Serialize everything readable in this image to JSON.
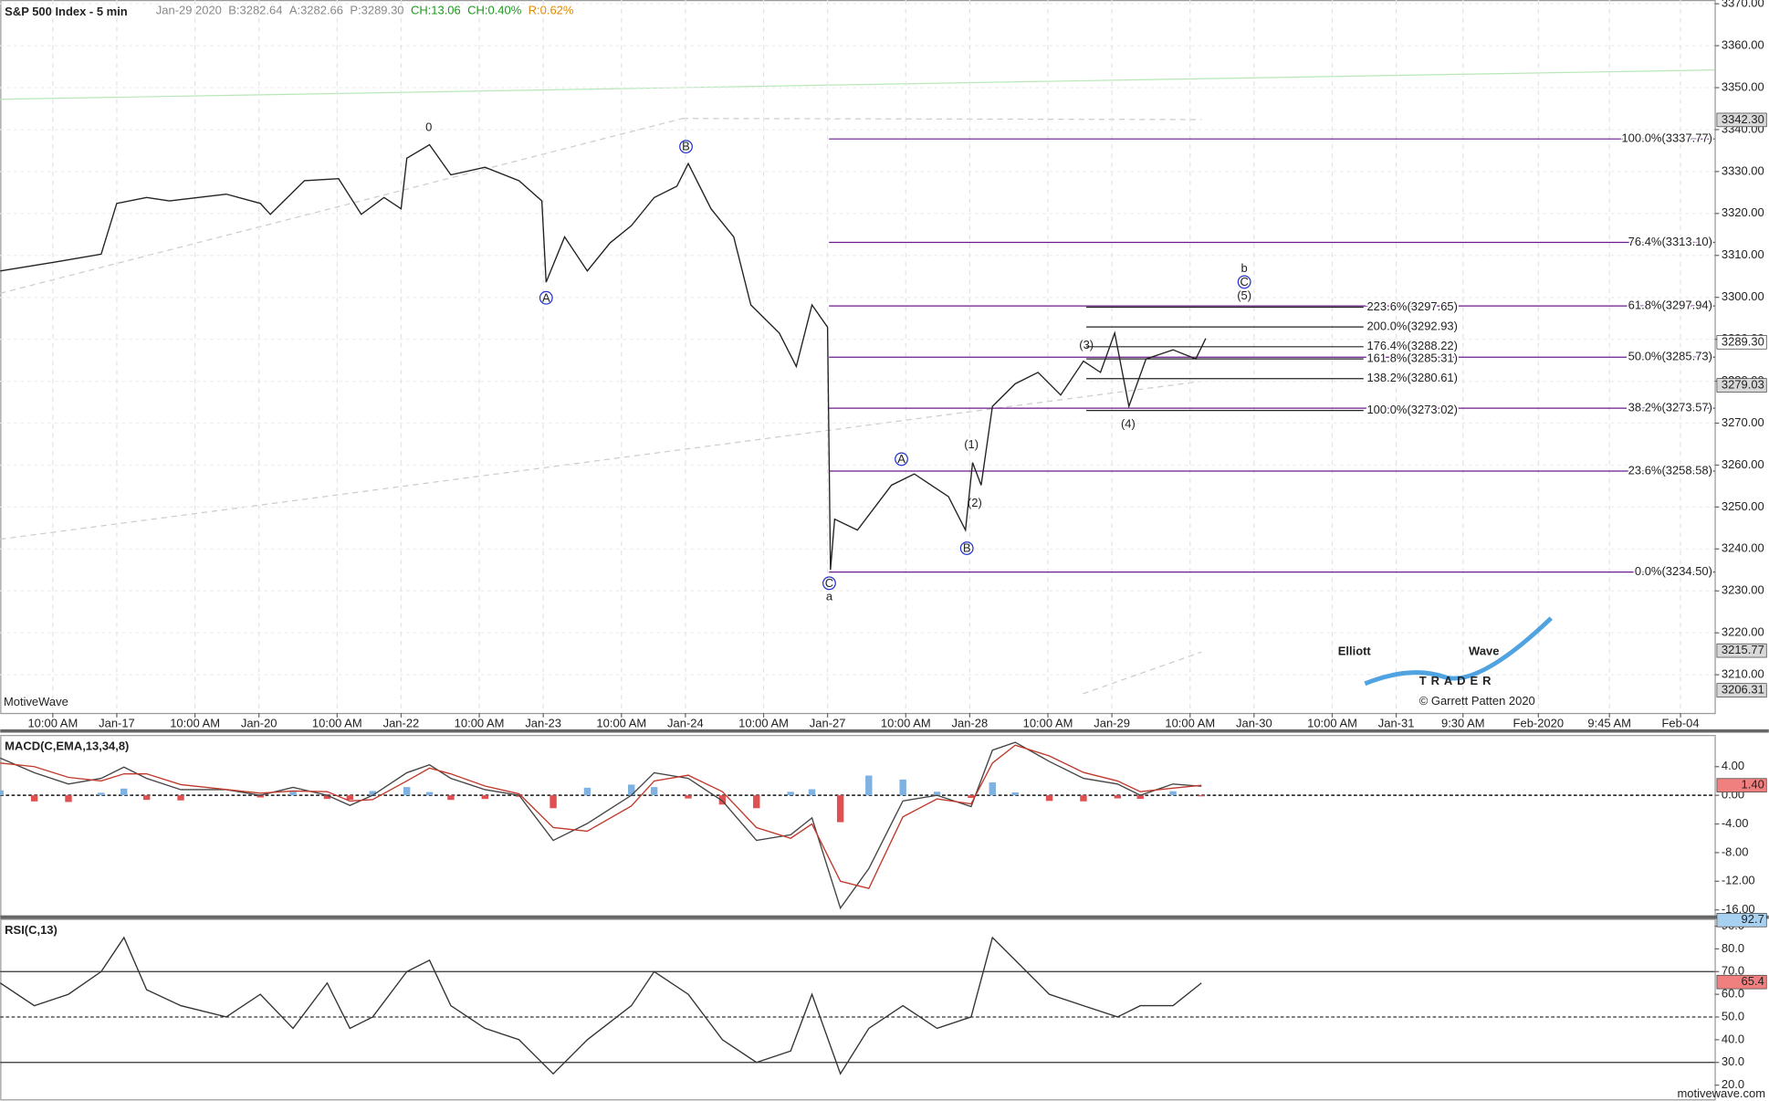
{
  "chart_data": [
    {
      "type": "line",
      "title": "S&P 500 Index - 5 min",
      "header": [
        {
          "text": "Jan-29 2020",
          "color": "#888888"
        },
        {
          "text": "B:3282.64",
          "color": "#888888"
        },
        {
          "text": "A:3282.66",
          "color": "#888888"
        },
        {
          "text": "P:3289.30",
          "color": "#888888"
        },
        {
          "text": "CH:13.06",
          "color": "#1a9a1a"
        },
        {
          "text": "CH:0.40%",
          "color": "#1a9a1a"
        },
        {
          "text": "R:0.62%",
          "color": "#e08a00"
        }
      ],
      "x": [
        0.18,
        0.58,
        0.89,
        1.0,
        1.21,
        1.37,
        1.77,
        2.01,
        2.08,
        2.32,
        2.56,
        2.72,
        2.88,
        3.0,
        3.04,
        3.2,
        3.35,
        3.59,
        3.83,
        3.99,
        4.02,
        4.15,
        4.31,
        4.47,
        4.62,
        4.78,
        4.94,
        5.02,
        5.18,
        5.34,
        5.46,
        5.66,
        5.78,
        5.89,
        6.0,
        6.02,
        6.05,
        6.21,
        6.45,
        6.61,
        6.85,
        6.97,
        7.02,
        7.08,
        7.16,
        7.32,
        7.48,
        7.64,
        7.8,
        7.92,
        8.02,
        8.12,
        8.24,
        8.43,
        8.59,
        8.66
      ],
      "values": [
        3306.3,
        3308.5,
        3310.3,
        3322.4,
        3323.8,
        3323.0,
        3324.6,
        3322.4,
        3319.8,
        3327.8,
        3328.3,
        3319.8,
        3323.8,
        3321.1,
        3333.2,
        3336.4,
        3329.2,
        3331.0,
        3327.8,
        3323.0,
        3303.6,
        3314.4,
        3306.3,
        3313.0,
        3317.1,
        3323.8,
        3326.5,
        3331.9,
        3321.1,
        3314.4,
        3298.2,
        3291.5,
        3283.5,
        3298.2,
        3292.9,
        3235.0,
        3247.1,
        3244.5,
        3255.2,
        3257.9,
        3252.5,
        3244.5,
        3260.6,
        3255.2,
        3274.0,
        3279.4,
        3282.1,
        3276.7,
        3284.8,
        3282.1,
        3291.5,
        3274.0,
        3285.3,
        3287.5,
        3285.3,
        3290.2
      ],
      "color": "#222222",
      "xlim": [
        0.18,
        12.24
      ],
      "xticks": [
        {
          "value": 0.55,
          "label": "10:00 AM"
        },
        {
          "value": 1,
          "label": "Jan-17"
        },
        {
          "value": 1.55,
          "label": "10:00 AM"
        },
        {
          "value": 2,
          "label": "Jan-20"
        },
        {
          "value": 2.55,
          "label": "10:00 AM"
        },
        {
          "value": 3,
          "label": "Jan-22"
        },
        {
          "value": 3.55,
          "label": "10:00 AM"
        },
        {
          "value": 4,
          "label": "Jan-23"
        },
        {
          "value": 4.55,
          "label": "10:00 AM"
        },
        {
          "value": 5,
          "label": "Jan-24"
        },
        {
          "value": 5.55,
          "label": "10:00 AM"
        },
        {
          "value": 6,
          "label": "Jan-27"
        },
        {
          "value": 6.55,
          "label": "10:00 AM"
        },
        {
          "value": 7,
          "label": "Jan-28"
        },
        {
          "value": 7.55,
          "label": "10:00 AM"
        },
        {
          "value": 8,
          "label": "Jan-29"
        },
        {
          "value": 8.55,
          "label": "10:00 AM"
        },
        {
          "value": 9,
          "label": "Jan-30"
        },
        {
          "value": 9.55,
          "label": "10:00 AM"
        },
        {
          "value": 10,
          "label": "Jan-31"
        },
        {
          "value": 10.47,
          "label": "9:30 AM"
        },
        {
          "value": 11,
          "label": "Feb-2020"
        },
        {
          "value": 11.5,
          "label": "9:45 AM"
        },
        {
          "value": 12,
          "label": "Feb-04"
        }
      ],
      "ylim": [
        3200.9,
        3370.9
      ],
      "yticks": [
        {
          "value": 3210,
          "label": "3210.00"
        },
        {
          "value": 3220,
          "label": "3220.00"
        },
        {
          "value": 3230,
          "label": "3230.00"
        },
        {
          "value": 3240,
          "label": "3240.00"
        },
        {
          "value": 3250,
          "label": "3250.00"
        },
        {
          "value": 3260,
          "label": "3260.00"
        },
        {
          "value": 3270,
          "label": "3270.00"
        },
        {
          "value": 3280,
          "label": "3280.00"
        },
        {
          "value": 3290,
          "label": "3290.00"
        },
        {
          "value": 3300,
          "label": "3300.00"
        },
        {
          "value": 3310,
          "label": "3310.00"
        },
        {
          "value": 3320,
          "label": "3320.00"
        },
        {
          "value": 3330,
          "label": "3330.00"
        },
        {
          "value": 3340,
          "label": "3340.00"
        },
        {
          "value": 3350,
          "label": "3350.00"
        },
        {
          "value": 3360,
          "label": "3360.00"
        },
        {
          "value": 3370,
          "label": "3370.00"
        }
      ],
      "grid": true,
      "price_tags": [
        {
          "value": 3342.3,
          "label": "3342.30",
          "color": "#d8d8d8"
        },
        {
          "value": 3289.3,
          "label": "3289.30",
          "color": "#ffffff"
        },
        {
          "value": 3279.03,
          "label": "3279.03",
          "color": "#d8d8d8"
        },
        {
          "value": 3215.77,
          "label": "3215.77",
          "color": "#d8d8d8"
        },
        {
          "value": 3206.31,
          "label": "3206.31",
          "color": "#d8d8d8"
        }
      ],
      "fib_color": "#6a1b8a",
      "fib_start": 6.01,
      "fib_levels": [
        {
          "value": 3337.77,
          "label": "100.0%(3337.77)"
        },
        {
          "value": 3313.1,
          "label": "76.4%(3313.10)"
        },
        {
          "value": 3297.94,
          "label": "61.8%(3297.94)"
        },
        {
          "value": 3285.73,
          "label": "50.0%(3285.73)"
        },
        {
          "value": 3273.57,
          "label": "38.2%(3273.57)"
        },
        {
          "value": 3258.58,
          "label": "23.6%(3258.58)"
        },
        {
          "value": 3234.5,
          "label": "0.0%(3234.50)"
        }
      ],
      "ext_color": "#222222",
      "ext_xrange": [
        7.82,
        9.77
      ],
      "ext_levels": [
        {
          "value": 3297.65,
          "label": "223.6%(3297.65)"
        },
        {
          "value": 3292.93,
          "label": "200.0%(3292.93)"
        },
        {
          "value": 3288.22,
          "label": "176.4%(3288.22)"
        },
        {
          "value": 3285.31,
          "label": "161.8%(3285.31)"
        },
        {
          "value": 3280.61,
          "label": "138.2%(3280.61)"
        },
        {
          "value": 3273.02,
          "label": "100.0%(3273.02)"
        }
      ],
      "annotations": [
        {
          "text": "0"
        },
        {
          "text": "A",
          "circled": true
        },
        {
          "text": "B",
          "circled": true
        },
        {
          "text": "C",
          "circled": true
        },
        {
          "text": "a"
        },
        {
          "text": "A",
          "circled": true
        },
        {
          "text": "B",
          "circled": true
        },
        {
          "text": "(1)"
        },
        {
          "text": "(2)"
        },
        {
          "text": "(3)"
        },
        {
          "text": "(4)"
        },
        {
          "text": "b"
        },
        {
          "text": "C",
          "circled": true
        },
        {
          "text": "(5)"
        }
      ],
      "watermark": "MotiveWave",
      "logo": {
        "line1": "Elliott",
        "line2": "Wave",
        "line3": "TRADER",
        "credit": "© Garrett Patten 2020"
      }
    },
    {
      "type": "macd",
      "title": "MACD(C,EMA,13,34,8)",
      "x": [
        0.18,
        0.42,
        0.66,
        0.89,
        1.05,
        1.21,
        1.45,
        1.77,
        2.01,
        2.24,
        2.48,
        2.64,
        2.8,
        3.04,
        3.2,
        3.35,
        3.59,
        3.83,
        4.07,
        4.31,
        4.62,
        4.78,
        5.02,
        5.26,
        5.5,
        5.74,
        5.89,
        6.09,
        6.29,
        6.53,
        6.77,
        7.01,
        7.16,
        7.32,
        7.56,
        7.8,
        8.04,
        8.2,
        8.43,
        8.63
      ],
      "series": [
        {
          "color": "#444444",
          "values": [
            5.2,
            3.15,
            1.57,
            2.36,
            3.94,
            2.36,
            0.79,
            0.79,
            0,
            1.1,
            0,
            -1.42,
            0,
            3.15,
            4.25,
            2.36,
            0.79,
            0,
            -6.3,
            -3.94,
            0,
            3.15,
            2.36,
            -0.79,
            -6.3,
            -5.51,
            -3.15,
            -15.75,
            -10.24,
            -0.79,
            0,
            -1.57,
            6.3,
            7.4,
            4.72,
            2.36,
            1.57,
            0,
            1.57,
            1.26
          ]
        },
        {
          "color": "#c0392b",
          "values": [
            4.5,
            4.0,
            2.5,
            2.0,
            3.0,
            3.0,
            1.5,
            0.8,
            0.3,
            0.6,
            0.5,
            -0.8,
            -0.6,
            2.0,
            3.8,
            3.0,
            1.3,
            0.2,
            -4.5,
            -5.0,
            -1.5,
            2.0,
            2.8,
            0.5,
            -4.5,
            -6.0,
            -4.0,
            -12.0,
            -13.0,
            -3.0,
            -0.5,
            -1.2,
            4.5,
            7.0,
            5.5,
            3.2,
            2.0,
            0.5,
            1.0,
            1.4
          ]
        }
      ],
      "histogram": [
        0.7,
        -0.85,
        -0.93,
        0.36,
        0.94,
        -0.64,
        -0.71,
        -0.01,
        -0.3,
        0.5,
        -0.5,
        -0.62,
        0.6,
        1.15,
        0.45,
        -0.64,
        -0.51,
        -0.2,
        -1.8,
        1.06,
        1.5,
        1.15,
        -0.44,
        -1.29,
        -1.8,
        0.49,
        0.85,
        -3.75,
        2.76,
        2.21,
        0.5,
        -0.37,
        1.8,
        0.4,
        -0.78,
        -0.84,
        -0.43,
        -0.5,
        0.57,
        -0.14
      ],
      "pos_color": "#7fb2e0",
      "neg_color": "#e05050",
      "xlim": [
        0.18,
        12.24
      ],
      "ylim": [
        -16.85,
        8.35
      ],
      "yticks": [
        {
          "value": 4,
          "label": "4.00"
        },
        {
          "value": 0,
          "label": "0.00"
        },
        {
          "value": -4,
          "label": "-4.00"
        },
        {
          "value": -8,
          "label": "-8.00"
        },
        {
          "value": -12,
          "label": "-12.00"
        },
        {
          "value": -16,
          "label": "-16.00"
        }
      ],
      "price_tags": [
        {
          "value": 1.4,
          "label": "1.40",
          "color": "#f08080"
        }
      ],
      "zero_line": 0
    },
    {
      "type": "rsi",
      "title": "RSI(C,13)",
      "x": [
        0.18,
        0.42,
        0.66,
        0.89,
        1.05,
        1.21,
        1.45,
        1.77,
        2.01,
        2.24,
        2.48,
        2.64,
        2.8,
        3.04,
        3.2,
        3.35,
        3.59,
        3.83,
        4.07,
        4.31,
        4.62,
        4.78,
        5.02,
        5.26,
        5.5,
        5.74,
        5.89,
        6.09,
        6.29,
        6.53,
        6.77,
        7.01,
        7.16,
        7.32,
        7.56,
        7.8,
        8.04,
        8.2,
        8.43,
        8.63
      ],
      "values": [
        65,
        55,
        60,
        70,
        85,
        62,
        55,
        50,
        60,
        45,
        65,
        45,
        50,
        70,
        75,
        55,
        45,
        40,
        25,
        40,
        55,
        70,
        60,
        40,
        30,
        35,
        60,
        25,
        45,
        55,
        45,
        50,
        85,
        75,
        60,
        55,
        50,
        55,
        55,
        65
      ],
      "color": "#333333",
      "xlim": [
        0.18,
        12.24
      ],
      "ylim": [
        13.5,
        93
      ],
      "yticks": [
        {
          "value": 90,
          "label": "90.0"
        },
        {
          "value": 80,
          "label": "80.0"
        },
        {
          "value": 70,
          "label": "70.0"
        },
        {
          "value": 60,
          "label": "60.0"
        },
        {
          "value": 50,
          "label": "50.0"
        },
        {
          "value": 40,
          "label": "40.0"
        },
        {
          "value": 30,
          "label": "30.0"
        },
        {
          "value": 20,
          "label": "20.0"
        }
      ],
      "levels": [
        70,
        50,
        30
      ],
      "price_tags": [
        {
          "value": 92.7,
          "label": "92.7",
          "color": "#a8d0f0"
        },
        {
          "value": 65.4,
          "label": "65.4",
          "color": "#f08080"
        }
      ],
      "footer": "motivewave.com"
    }
  ]
}
